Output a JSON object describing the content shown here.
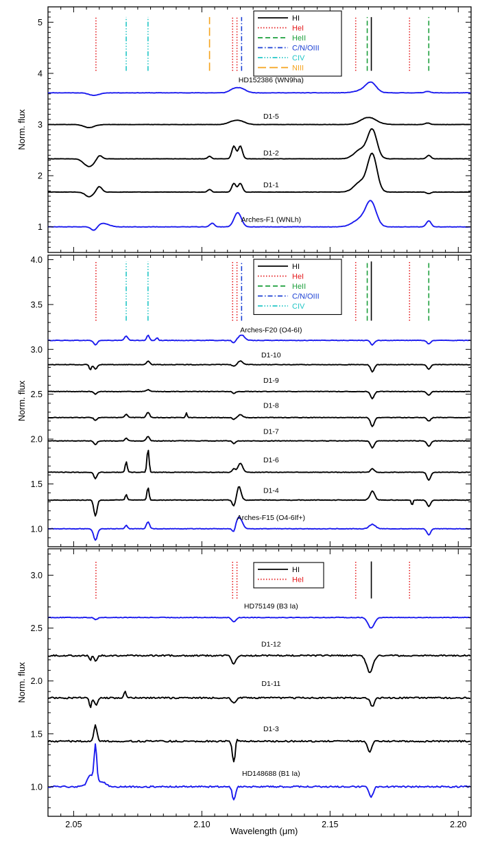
{
  "figure": {
    "shared_xlabel": "Wavelength (μm)",
    "shared_ylabel": "Norm. flux"
  },
  "chart_data": [
    {
      "type": "line",
      "panel": "top",
      "xlabel": "Wavelength (μm)",
      "ylabel": "Norm. flux",
      "xlim": [
        2.04,
        2.205
      ],
      "ylim": [
        0.5,
        5.3
      ],
      "xticks": [
        "2.05",
        "2.10",
        "2.15",
        "2.20"
      ],
      "yticks": [
        "1",
        "2",
        "3",
        "4",
        "5"
      ],
      "legend": {
        "position": "top-center",
        "entries": [
          {
            "label": "HI",
            "color": "#000000",
            "dash": "solid"
          },
          {
            "label": "HeI",
            "color": "#e41a1c",
            "dash": "dotted"
          },
          {
            "label": "HeII",
            "color": "#1a9e3a",
            "dash": "dashed"
          },
          {
            "label": "C/N/OIII",
            "color": "#1a3fd4",
            "dash": "dashdot"
          },
          {
            "label": "CIV",
            "color": "#21c6c6",
            "dash": "dashdotdotdot"
          },
          {
            "label": "NIII",
            "color": "#f5a21b",
            "dash": "longdash"
          }
        ]
      },
      "line_markers": [
        {
          "species": "HeI",
          "x": 2.0587,
          "y0": 4.05,
          "y1": 5.1
        },
        {
          "species": "CIV",
          "x": 2.0705,
          "y0": 4.05,
          "y1": 5.1
        },
        {
          "species": "CIV",
          "x": 2.079,
          "y0": 4.05,
          "y1": 5.1
        },
        {
          "species": "NIII",
          "x": 2.103,
          "y0": 4.05,
          "y1": 5.1
        },
        {
          "species": "HeI",
          "x": 2.112,
          "y0": 4.05,
          "y1": 5.1
        },
        {
          "species": "HeI",
          "x": 2.1137,
          "y0": 4.05,
          "y1": 5.1
        },
        {
          "species": "C/N/OIII",
          "x": 2.1155,
          "y0": 4.05,
          "y1": 5.1
        },
        {
          "species": "HeI",
          "x": 2.16,
          "y0": 4.05,
          "y1": 5.1
        },
        {
          "species": "HeII",
          "x": 2.1645,
          "y0": 4.05,
          "y1": 5.1
        },
        {
          "species": "HI",
          "x": 2.1661,
          "y0": 4.05,
          "y1": 5.1
        },
        {
          "species": "HeI",
          "x": 2.181,
          "y0": 4.05,
          "y1": 5.1
        },
        {
          "species": "HeII",
          "x": 2.1885,
          "y0": 4.05,
          "y1": 5.1
        }
      ],
      "series": [
        {
          "name": "HD152386 (WN9ha)",
          "color": "#1a1aee",
          "offset": 3.62,
          "label_y": 3.88,
          "features": [
            [
              2.058,
              -0.05,
              0.002
            ],
            [
              2.112,
              0.05,
              0.0015
            ],
            [
              2.115,
              0.09,
              0.002
            ],
            [
              2.166,
              0.18,
              0.002
            ],
            [
              2.163,
              0.05,
              0.003
            ],
            [
              2.188,
              0.03,
              0.001
            ]
          ]
        },
        {
          "name": "D1-5",
          "color": "#000000",
          "offset": 3.0,
          "label_y": 3.17,
          "features": [
            [
              2.056,
              -0.06,
              0.002
            ],
            [
              2.112,
              0.05,
              0.002
            ],
            [
              2.115,
              0.06,
              0.002
            ],
            [
              2.165,
              0.14,
              0.003
            ],
            [
              2.188,
              0.03,
              0.001
            ]
          ]
        },
        {
          "name": "D1-2",
          "color": "#000000",
          "offset": 2.33,
          "label_y": 2.45,
          "features": [
            [
              2.056,
              -0.15,
              0.002
            ],
            [
              2.06,
              0.08,
              0.001
            ],
            [
              2.103,
              0.05,
              0.0007
            ],
            [
              2.1125,
              0.25,
              0.0008
            ],
            [
              2.115,
              0.25,
              0.0008
            ],
            [
              2.1665,
              0.55,
              0.0018
            ],
            [
              2.162,
              0.18,
              0.0025
            ],
            [
              2.1885,
              0.07,
              0.0008
            ]
          ]
        },
        {
          "name": "D1-1",
          "color": "#000000",
          "offset": 1.68,
          "label_y": 1.83,
          "features": [
            [
              2.056,
              -0.09,
              0.0015
            ],
            [
              2.06,
              0.11,
              0.001
            ],
            [
              2.103,
              0.05,
              0.0007
            ],
            [
              2.1125,
              0.17,
              0.0008
            ],
            [
              2.115,
              0.17,
              0.0008
            ],
            [
              2.1665,
              0.72,
              0.0018
            ],
            [
              2.162,
              0.2,
              0.0025
            ],
            [
              2.1885,
              -0.03,
              0.0008
            ]
          ]
        },
        {
          "name": "Arches-F1 (WNLh)",
          "color": "#1a1aee",
          "offset": 1.0,
          "label_y": 1.15,
          "features": [
            [
              2.058,
              -0.1,
              0.0012
            ],
            [
              2.061,
              0.07,
              0.0025
            ],
            [
              2.104,
              0.07,
              0.0009
            ],
            [
              2.114,
              0.28,
              0.0014
            ],
            [
              2.166,
              0.45,
              0.002
            ],
            [
              2.162,
              0.15,
              0.003
            ],
            [
              2.1885,
              0.12,
              0.0009
            ]
          ]
        }
      ]
    },
    {
      "type": "line",
      "panel": "middle",
      "xlabel": "Wavelength (μm)",
      "ylabel": "Norm. flux",
      "xlim": [
        2.04,
        2.205
      ],
      "ylim": [
        0.8,
        4.05
      ],
      "xticks": [
        "2.05",
        "2.10",
        "2.15",
        "2.20"
      ],
      "yticks": [
        "1.0",
        "1.5",
        "2.0",
        "2.5",
        "3.0",
        "3.5",
        "4.0"
      ],
      "legend": {
        "position": "top-center",
        "entries": [
          {
            "label": "HI",
            "color": "#000000",
            "dash": "solid"
          },
          {
            "label": "HeI",
            "color": "#e41a1c",
            "dash": "dotted"
          },
          {
            "label": "HeII",
            "color": "#1a9e3a",
            "dash": "dashed"
          },
          {
            "label": "C/N/OIII",
            "color": "#1a3fd4",
            "dash": "dashdot"
          },
          {
            "label": "CIV",
            "color": "#21c6c6",
            "dash": "dashdotdotdot"
          }
        ]
      },
      "line_markers": [
        {
          "species": "HeI",
          "x": 2.0587,
          "y0": 3.32,
          "y1": 3.98
        },
        {
          "species": "CIV",
          "x": 2.0705,
          "y0": 3.32,
          "y1": 3.98
        },
        {
          "species": "CIV",
          "x": 2.079,
          "y0": 3.32,
          "y1": 3.98
        },
        {
          "species": "HeI",
          "x": 2.112,
          "y0": 3.32,
          "y1": 3.98
        },
        {
          "species": "HeI",
          "x": 2.1137,
          "y0": 3.32,
          "y1": 3.98
        },
        {
          "species": "C/N/OIII",
          "x": 2.1155,
          "y0": 3.32,
          "y1": 3.98
        },
        {
          "species": "HeI",
          "x": 2.16,
          "y0": 3.32,
          "y1": 3.98
        },
        {
          "species": "HeII",
          "x": 2.1645,
          "y0": 3.32,
          "y1": 3.98
        },
        {
          "species": "HI",
          "x": 2.1661,
          "y0": 3.32,
          "y1": 3.98
        },
        {
          "species": "HeI",
          "x": 2.181,
          "y0": 3.32,
          "y1": 3.98
        },
        {
          "species": "HeII",
          "x": 2.1885,
          "y0": 3.32,
          "y1": 3.98
        }
      ],
      "series": [
        {
          "name": "Arches-F20 (O4-6I)",
          "color": "#1a1aee",
          "offset": 3.1,
          "label_y": 3.22,
          "features": [
            [
              2.0585,
              -0.05,
              0.0007
            ],
            [
              2.0705,
              0.05,
              0.0006
            ],
            [
              2.079,
              0.06,
              0.0005
            ],
            [
              2.0825,
              0.03,
              0.0004
            ],
            [
              2.1125,
              -0.03,
              0.0006
            ],
            [
              2.1155,
              0.06,
              0.0012
            ],
            [
              2.1665,
              -0.05,
              0.0007
            ],
            [
              2.1885,
              -0.04,
              0.0007
            ]
          ]
        },
        {
          "name": "D1-10",
          "color": "#000000",
          "offset": 2.83,
          "label_y": 2.94,
          "features": [
            [
              2.0565,
              -0.06,
              0.0004
            ],
            [
              2.0585,
              -0.05,
              0.0006
            ],
            [
              2.079,
              0.04,
              0.0006
            ],
            [
              2.1125,
              -0.02,
              0.0006
            ],
            [
              2.115,
              0.04,
              0.0009
            ],
            [
              2.1665,
              -0.08,
              0.0007
            ],
            [
              2.1885,
              -0.05,
              0.0007
            ]
          ]
        },
        {
          "name": "D1-9",
          "color": "#000000",
          "offset": 2.53,
          "label_y": 2.66,
          "features": [
            [
              2.0585,
              -0.03,
              0.0006
            ],
            [
              2.079,
              0.02,
              0.0006
            ],
            [
              2.1125,
              -0.02,
              0.0006
            ],
            [
              2.1665,
              -0.08,
              0.0007
            ],
            [
              2.1885,
              -0.04,
              0.0007
            ]
          ]
        },
        {
          "name": "D1-8",
          "color": "#000000",
          "offset": 2.24,
          "label_y": 2.38,
          "features": [
            [
              2.0585,
              -0.03,
              0.0006
            ],
            [
              2.0705,
              0.04,
              0.0005
            ],
            [
              2.079,
              0.06,
              0.0006
            ],
            [
              2.094,
              0.05,
              0.0003
            ],
            [
              2.1125,
              -0.02,
              0.0006
            ],
            [
              2.115,
              0.03,
              0.0009
            ],
            [
              2.1665,
              -0.1,
              0.0007
            ],
            [
              2.1885,
              -0.04,
              0.0007
            ]
          ]
        },
        {
          "name": "D1-7",
          "color": "#000000",
          "offset": 1.98,
          "label_y": 2.09,
          "features": [
            [
              2.0585,
              -0.04,
              0.0006
            ],
            [
              2.0705,
              0.03,
              0.0005
            ],
            [
              2.079,
              0.05,
              0.0006
            ],
            [
              2.1125,
              -0.03,
              0.0006
            ],
            [
              2.1665,
              -0.08,
              0.0007
            ],
            [
              2.1885,
              -0.06,
              0.0007
            ]
          ]
        },
        {
          "name": "D1-6",
          "color": "#000000",
          "offset": 1.63,
          "label_y": 1.77,
          "features": [
            [
              2.0585,
              -0.07,
              0.0006
            ],
            [
              2.0705,
              0.12,
              0.0004
            ],
            [
              2.079,
              0.26,
              0.0004
            ],
            [
              2.1125,
              0.04,
              0.0006
            ],
            [
              2.115,
              0.1,
              0.0009
            ],
            [
              2.1665,
              0.04,
              0.0007
            ],
            [
              2.1885,
              -0.09,
              0.0007
            ]
          ]
        },
        {
          "name": "D1-4",
          "color": "#000000",
          "offset": 1.32,
          "label_y": 1.43,
          "features": [
            [
              2.0585,
              -0.18,
              0.0006
            ],
            [
              2.0705,
              0.06,
              0.0004
            ],
            [
              2.079,
              0.14,
              0.0004
            ],
            [
              2.1125,
              -0.07,
              0.0006
            ],
            [
              2.1145,
              0.15,
              0.0008
            ],
            [
              2.1665,
              0.1,
              0.0009
            ],
            [
              2.182,
              -0.06,
              0.0003
            ],
            [
              2.1885,
              -0.07,
              0.0007
            ]
          ]
        },
        {
          "name": "Arches-F15 (O4-6If+)",
          "color": "#1a1aee",
          "offset": 1.0,
          "label_y": 1.13,
          "features": [
            [
              2.0585,
              -0.13,
              0.0007
            ],
            [
              2.0705,
              0.04,
              0.0005
            ],
            [
              2.079,
              0.08,
              0.0006
            ],
            [
              2.1125,
              -0.06,
              0.0006
            ],
            [
              2.1145,
              0.13,
              0.0012
            ],
            [
              2.1665,
              0.05,
              0.0012
            ],
            [
              2.1885,
              -0.07,
              0.0007
            ]
          ]
        }
      ]
    },
    {
      "type": "line",
      "panel": "bottom",
      "xlabel": "Wavelength (μm)",
      "ylabel": "Norm. flux",
      "xlim": [
        2.04,
        2.205
      ],
      "ylim": [
        0.72,
        3.25
      ],
      "xticks": [
        "2.05",
        "2.10",
        "2.15",
        "2.20"
      ],
      "yticks": [
        "1.0",
        "1.5",
        "2.0",
        "2.5",
        "3.0"
      ],
      "legend": {
        "position": "top-center",
        "entries": [
          {
            "label": "HI",
            "color": "#000000",
            "dash": "solid"
          },
          {
            "label": "HeI",
            "color": "#e41a1c",
            "dash": "dotted"
          }
        ]
      },
      "line_markers": [
        {
          "species": "HeI",
          "x": 2.0587,
          "y0": 2.78,
          "y1": 3.13
        },
        {
          "species": "HeI",
          "x": 2.112,
          "y0": 2.78,
          "y1": 3.13
        },
        {
          "species": "HeI",
          "x": 2.1137,
          "y0": 2.78,
          "y1": 3.13
        },
        {
          "species": "HeI",
          "x": 2.16,
          "y0": 2.78,
          "y1": 3.13
        },
        {
          "species": "HI",
          "x": 2.1661,
          "y0": 2.78,
          "y1": 3.13
        },
        {
          "species": "HeI",
          "x": 2.181,
          "y0": 2.78,
          "y1": 3.13
        }
      ],
      "series": [
        {
          "name": "HD75149 (B3 Ia)",
          "color": "#1a1aee",
          "offset": 2.6,
          "label_y": 2.71,
          "features": [
            [
              2.0587,
              -0.02,
              0.0006
            ],
            [
              2.1125,
              -0.04,
              0.0008
            ],
            [
              2.166,
              -0.1,
              0.0012
            ]
          ]
        },
        {
          "name": "D1-12",
          "color": "#000000",
          "offset": 2.24,
          "label_y": 2.35,
          "features": [
            [
              2.0565,
              -0.05,
              0.0004
            ],
            [
              2.0587,
              -0.05,
              0.0006
            ],
            [
              2.1125,
              -0.08,
              0.0008
            ],
            [
              2.1655,
              -0.16,
              0.0012
            ]
          ]
        },
        {
          "name": "D1-11",
          "color": "#000000",
          "offset": 1.84,
          "label_y": 1.98,
          "features": [
            [
              2.0565,
              -0.09,
              0.0004
            ],
            [
              2.0587,
              -0.07,
              0.0006
            ],
            [
              2.07,
              0.06,
              0.0004
            ],
            [
              2.1125,
              -0.05,
              0.0008
            ],
            [
              2.1665,
              -0.08,
              0.0008
            ]
          ]
        },
        {
          "name": "D1-3",
          "color": "#000000",
          "offset": 1.43,
          "label_y": 1.55,
          "features": [
            [
              2.0585,
              0.15,
              0.0006
            ],
            [
              2.1125,
              -0.2,
              0.0006
            ],
            [
              2.1135,
              0.05,
              0.0004
            ],
            [
              2.1655,
              -0.1,
              0.0008
            ]
          ]
        },
        {
          "name": "HD148688 (B1 Ia)",
          "color": "#1a1aee",
          "offset": 1.0,
          "label_y": 1.13,
          "features": [
            [
              2.0585,
              0.35,
              0.0005
            ],
            [
              2.0565,
              0.1,
              0.0012
            ],
            [
              2.0605,
              0.05,
              0.0018
            ],
            [
              2.1125,
              -0.13,
              0.0006
            ],
            [
              2.166,
              -0.1,
              0.0008
            ]
          ]
        }
      ]
    }
  ]
}
